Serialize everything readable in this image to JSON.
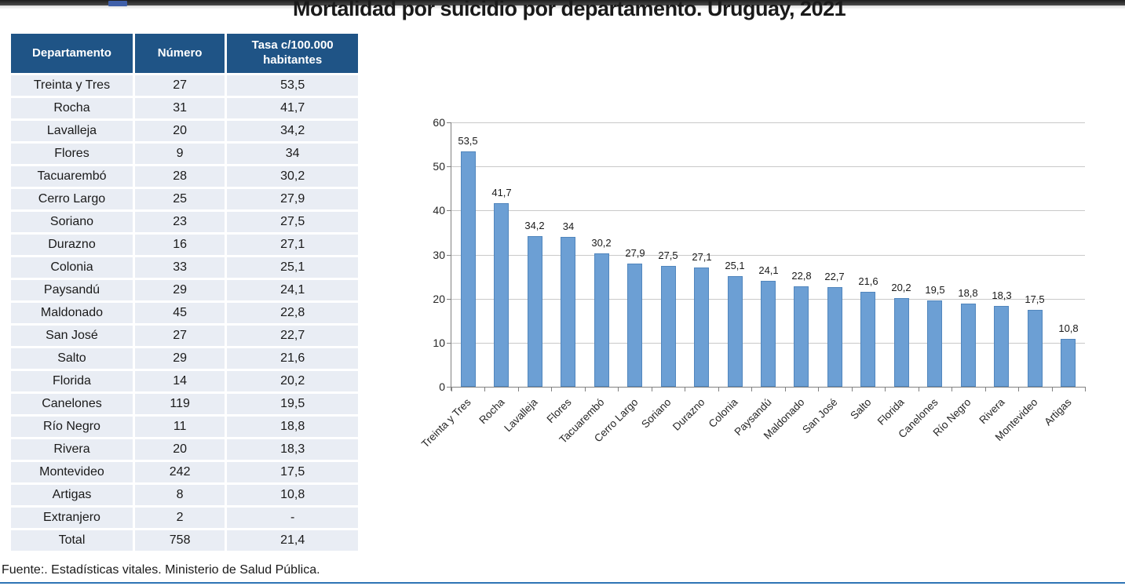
{
  "title": "Mortalidad por suicidio por departamento. Uruguay, 2021",
  "table": {
    "headers": [
      "Departamento",
      "Número",
      "Tasa c/100.000 habitantes"
    ],
    "rows": [
      [
        "Treinta y Tres",
        "27",
        "53,5"
      ],
      [
        "Rocha",
        "31",
        "41,7"
      ],
      [
        "Lavalleja",
        "20",
        "34,2"
      ],
      [
        "Flores",
        "9",
        "34"
      ],
      [
        "Tacuarembó",
        "28",
        "30,2"
      ],
      [
        "Cerro Largo",
        "25",
        "27,9"
      ],
      [
        "Soriano",
        "23",
        "27,5"
      ],
      [
        "Durazno",
        "16",
        "27,1"
      ],
      [
        "Colonia",
        "33",
        "25,1"
      ],
      [
        "Paysandú",
        "29",
        "24,1"
      ],
      [
        "Maldonado",
        "45",
        "22,8"
      ],
      [
        "San José",
        "27",
        "22,7"
      ],
      [
        "Salto",
        "29",
        "21,6"
      ],
      [
        "Florida",
        "14",
        "20,2"
      ],
      [
        "Canelones",
        "119",
        "19,5"
      ],
      [
        "Río Negro",
        "11",
        "18,8"
      ],
      [
        "Rivera",
        "20",
        "18,3"
      ],
      [
        "Montevideo",
        "242",
        "17,5"
      ],
      [
        "Artigas",
        "8",
        "10,8"
      ],
      [
        "Extranjero",
        "2",
        "-"
      ],
      [
        "Total",
        "758",
        "21,4"
      ]
    ]
  },
  "chart_data": {
    "type": "bar",
    "title": "",
    "xlabel": "",
    "ylabel": "",
    "categories": [
      "Treinta y Tres",
      "Rocha",
      "Lavalleja",
      "Flores",
      "Tacuarembó",
      "Cerro Largo",
      "Soriano",
      "Durazno",
      "Colonia",
      "Paysandú",
      "Maldonado",
      "San José",
      "Salto",
      "Florida",
      "Canelones",
      "Río Negro",
      "Rivera",
      "Montevideo",
      "Artigas"
    ],
    "values": [
      53.5,
      41.7,
      34.2,
      34,
      30.2,
      27.9,
      27.5,
      27.1,
      25.1,
      24.1,
      22.8,
      22.7,
      21.6,
      20.2,
      19.5,
      18.8,
      18.3,
      17.5,
      10.8
    ],
    "labels": [
      "53,5",
      "41,7",
      "34,2",
      "34",
      "30,2",
      "27,9",
      "27,5",
      "27,1",
      "25,1",
      "24,1",
      "22,8",
      "22,7",
      "21,6",
      "20,2",
      "19,5",
      "18,8",
      "18,3",
      "17,5",
      "10,8"
    ],
    "ylim": [
      0,
      60
    ],
    "yticks": [
      0,
      10,
      20,
      30,
      40,
      50,
      60
    ],
    "grid": true,
    "legend": false,
    "bar_color": "#6C9FD4"
  },
  "footer": {
    "source": "Fuente:. Estadísticas vitales. Ministerio de Salud Pública."
  },
  "colors": {
    "table_header_bg": "#1F5486",
    "table_row_bg": "#E9EDF4",
    "bar": "#6C9FD4",
    "bottom_line": "#2E74B5"
  }
}
